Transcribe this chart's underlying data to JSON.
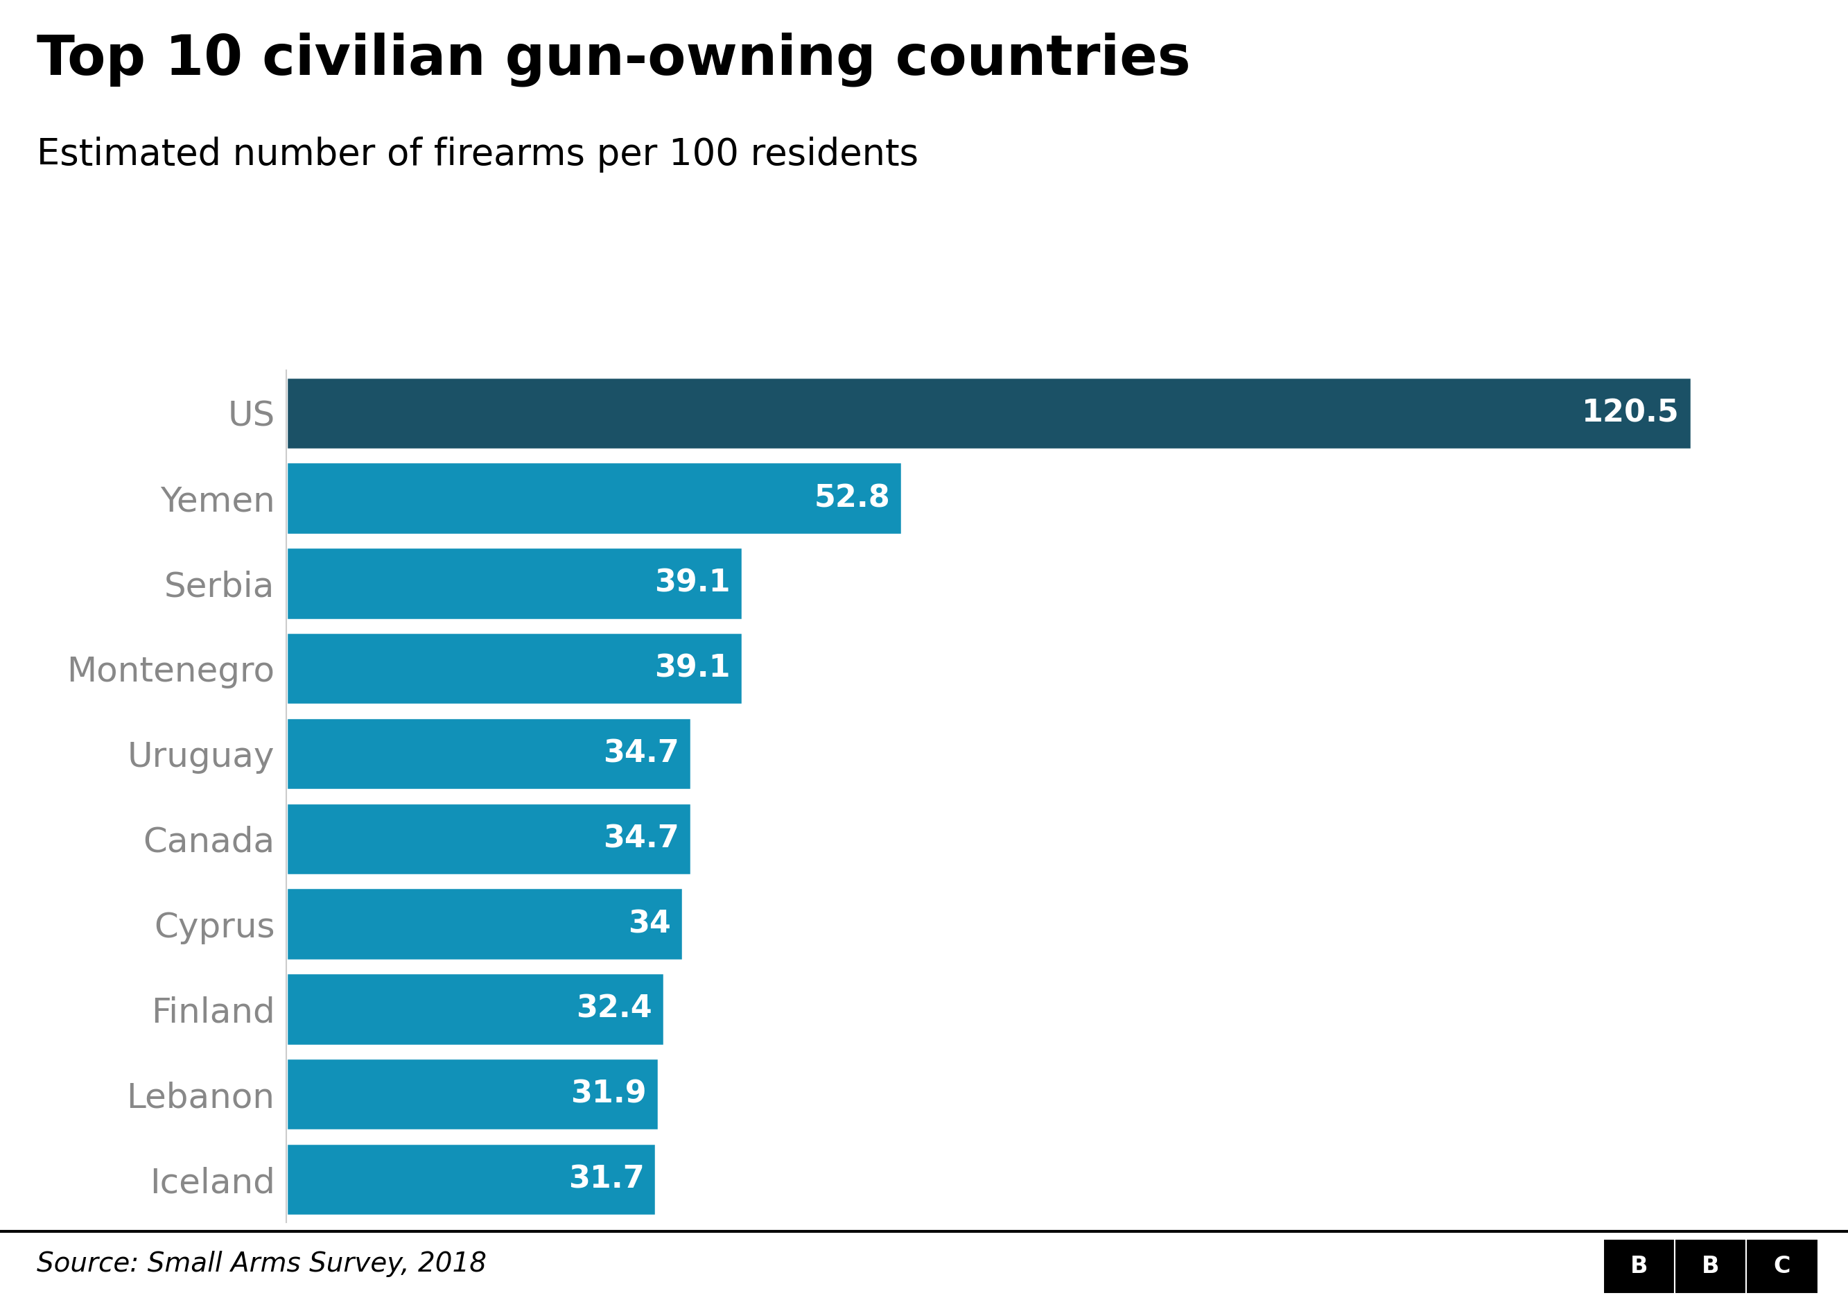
{
  "title": "Top 10 civilian gun-owning countries",
  "subtitle": "Estimated number of firearms per 100 residents",
  "countries": [
    "US",
    "Yemen",
    "Serbia",
    "Montenegro",
    "Uruguay",
    "Canada",
    "Cyprus",
    "Finland",
    "Lebanon",
    "Iceland"
  ],
  "values": [
    120.5,
    52.8,
    39.1,
    39.1,
    34.7,
    34.7,
    34.0,
    32.4,
    31.9,
    31.7
  ],
  "bar_color_us": "#1b5166",
  "bar_color_others": "#1191b8",
  "value_label_color": "#ffffff",
  "label_color": "#888888",
  "title_color": "#000000",
  "subtitle_color": "#000000",
  "background_color": "#ffffff",
  "source_text": "Source: Small Arms Survey, 2018",
  "source_color": "#000000",
  "title_fontsize": 58,
  "subtitle_fontsize": 38,
  "label_fontsize": 36,
  "value_fontsize": 32,
  "source_fontsize": 28,
  "xlim": [
    0,
    130
  ]
}
